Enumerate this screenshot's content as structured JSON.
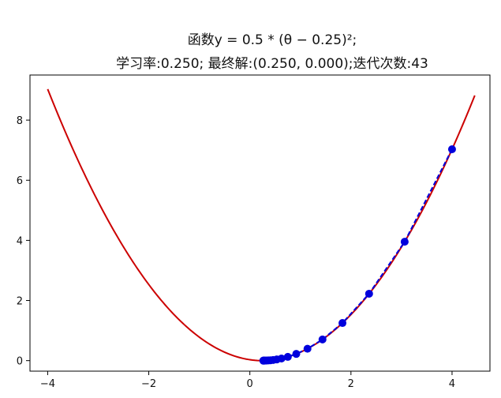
{
  "chart_data": {
    "type": "line",
    "title": "函数y = 0.5 * (θ − 0.25)²;",
    "subtitle": "学习率:0.250; 最终解:(0.250, 0.000);迭代次数:43",
    "xlabel": "",
    "ylabel": "",
    "xlim": [
      -4.35,
      4.75
    ],
    "ylim": [
      -0.35,
      9.5
    ],
    "x_ticks": [
      -4,
      -2,
      0,
      2,
      4
    ],
    "y_ticks": [
      0,
      2,
      4,
      6,
      8
    ],
    "grid": false,
    "curve": {
      "function": "0.5*(x-0.25)^2",
      "x_range": [
        -4,
        4.45
      ],
      "color": "#cc0000"
    },
    "series": [
      {
        "type": "line+markers",
        "color": "#0000dd",
        "x": [
          4.0,
          3.063,
          2.359,
          1.832,
          1.437,
          1.14,
          0.918,
          0.751,
          0.626,
          0.532,
          0.461,
          0.408,
          0.369,
          0.339,
          0.317,
          0.3,
          0.288,
          0.278,
          0.271,
          0.266
        ],
        "y": [
          7.031,
          3.955,
          2.225,
          1.251,
          0.704,
          0.396,
          0.223,
          0.125,
          0.0704,
          0.0396,
          0.0223,
          0.0125,
          0.007,
          0.004,
          0.0022,
          0.0013,
          0.0007,
          0.0004,
          0.0002,
          0.0001
        ]
      }
    ]
  }
}
